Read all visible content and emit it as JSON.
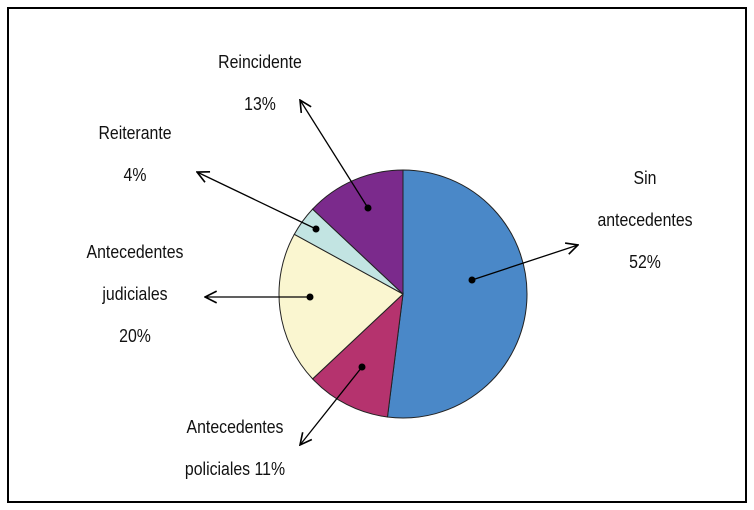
{
  "chart_data": {
    "type": "pie",
    "categories": [
      "Sin antecedentes",
      "Antecedentes policiales",
      "Antecedentes judiciales",
      "Reiterante",
      "Reincidente"
    ],
    "values": [
      52,
      11,
      20,
      4,
      13
    ],
    "value_labels": [
      "52%",
      "11%",
      "20%",
      "4%",
      "13%"
    ],
    "colors": [
      "#4a88c8",
      "#b5336e",
      "#faf6d0",
      "#c2e4e2",
      "#7b2a8c"
    ]
  }
}
